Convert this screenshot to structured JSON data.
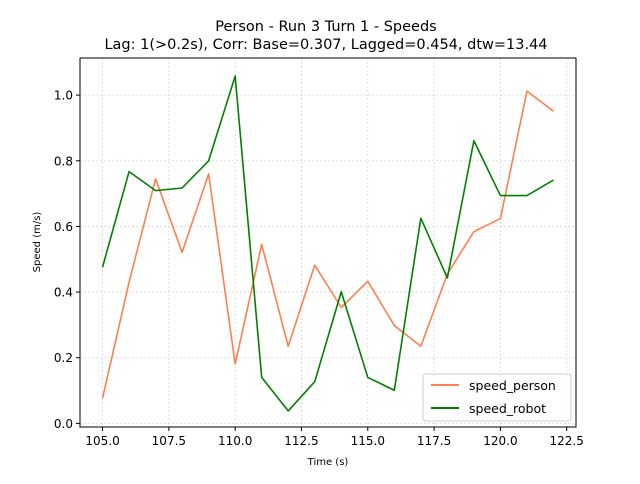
{
  "chart_data": {
    "type": "line",
    "title_line1": "Person - Run 3 Turn 1 - Speeds",
    "title_line2": "Lag: 1(>0.2s), Corr: Base=0.307, Lagged=0.454, dtw=13.44",
    "xlabel": "Time (s)",
    "ylabel": "Speed (m/s)",
    "xlim": [
      104.15,
      122.85
    ],
    "ylim": [
      -0.011,
      1.113
    ],
    "x_ticks": [
      105.0,
      107.5,
      110.0,
      112.5,
      115.0,
      117.5,
      120.0,
      122.5
    ],
    "x_tick_labels": [
      "105.0",
      "107.5",
      "110.0",
      "112.5",
      "115.0",
      "117.5",
      "120.0",
      "122.5"
    ],
    "y_ticks": [
      0.0,
      0.2,
      0.4,
      0.6,
      0.8,
      1.0
    ],
    "y_tick_labels": [
      "0.0",
      "0.2",
      "0.4",
      "0.6",
      "0.8",
      "1.0"
    ],
    "grid": true,
    "legend_position": "lower-right",
    "series": [
      {
        "name": "speed_person",
        "color": "#ff7f50",
        "x": [
          105,
          106,
          107,
          108,
          109,
          110,
          111,
          112,
          113,
          114,
          115,
          116,
          117,
          118,
          119,
          120,
          121,
          122
        ],
        "values": [
          0.077,
          0.43,
          0.745,
          0.521,
          0.76,
          0.181,
          0.545,
          0.235,
          0.482,
          0.353,
          0.433,
          0.298,
          0.235,
          0.455,
          0.584,
          0.624,
          1.012,
          0.951
        ]
      },
      {
        "name": "speed_robot",
        "color": "#008000",
        "x": [
          105,
          106,
          107,
          108,
          109,
          110,
          111,
          112,
          113,
          114,
          115,
          116,
          117,
          118,
          119,
          120,
          121,
          122
        ],
        "values": [
          0.476,
          0.767,
          0.709,
          0.717,
          0.8,
          1.058,
          0.14,
          0.038,
          0.127,
          0.401,
          0.14,
          0.101,
          0.625,
          0.443,
          0.861,
          0.694,
          0.694,
          0.741
        ]
      }
    ]
  }
}
